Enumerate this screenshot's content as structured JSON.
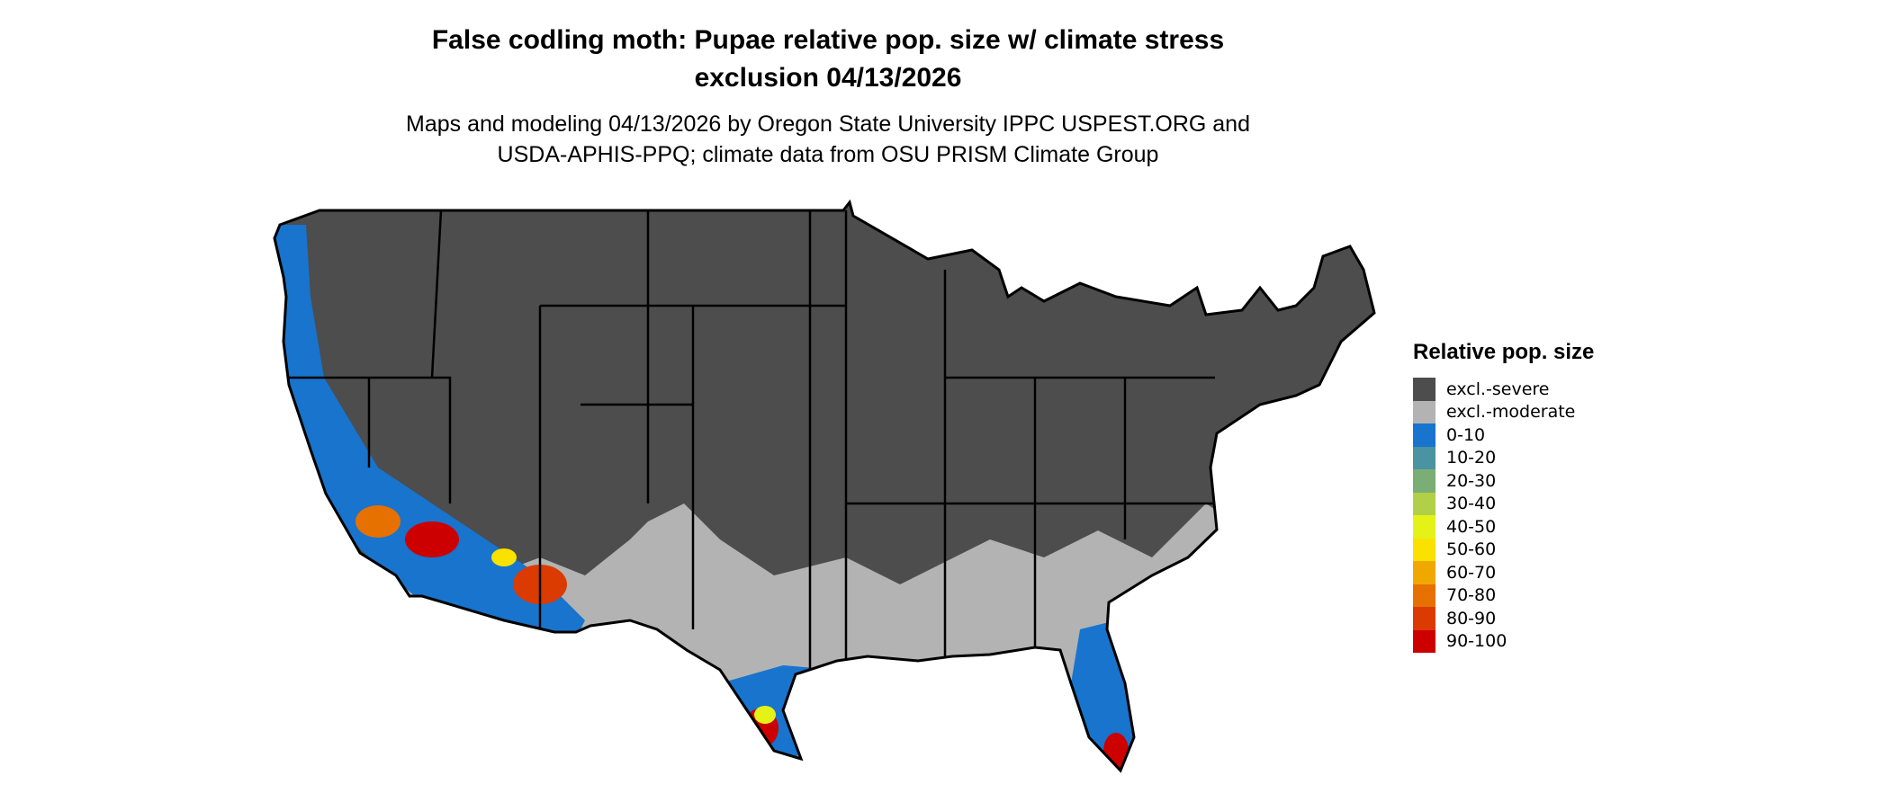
{
  "title_line1": "False codling moth: Pupae relative pop. size w/ climate stress",
  "title_line2": "exclusion 04/13/2026",
  "subtitle_line1": "Maps and modeling 04/13/2026 by Oregon State University IPPC USPEST.ORG and",
  "subtitle_line2": "USDA-APHIS-PPQ; climate data from OSU PRISM Climate Group",
  "legend": {
    "title": "Relative pop. size",
    "items": [
      {
        "label": "excl.-severe",
        "color": "#4d4d4d"
      },
      {
        "label": "excl.-moderate",
        "color": "#b3b3b3"
      },
      {
        "label": "0-10",
        "color": "#1874cd"
      },
      {
        "label": "10-20",
        "color": "#4a93a0"
      },
      {
        "label": "20-30",
        "color": "#7bae74"
      },
      {
        "label": "30-40",
        "color": "#b2d047"
      },
      {
        "label": "40-50",
        "color": "#e5f218"
      },
      {
        "label": "50-60",
        "color": "#fae100"
      },
      {
        "label": "60-70",
        "color": "#f0a800"
      },
      {
        "label": "70-80",
        "color": "#e67100"
      },
      {
        "label": "80-90",
        "color": "#db3a00"
      },
      {
        "label": "90-100",
        "color": "#cd0000"
      }
    ]
  }
}
